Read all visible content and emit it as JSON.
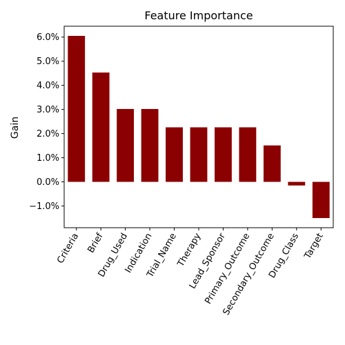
{
  "chart_data": {
    "type": "bar",
    "title": "Feature Importance",
    "xlabel": "",
    "ylabel": "Gain",
    "categories": [
      "Criteria",
      "Brief",
      "Drug_Used",
      "Indication",
      "Trial_Name",
      "Therapy",
      "Lead_Sponsor",
      "Primary_Outcome",
      "Secondary_Outcome",
      "Drug_Class",
      "Target"
    ],
    "values": [
      6.05,
      4.53,
      3.02,
      3.02,
      2.26,
      2.26,
      2.26,
      2.26,
      1.51,
      -0.15,
      -1.5
    ],
    "ylim": [
      -1.9,
      6.45
    ],
    "yticks": [
      -1.0,
      0.0,
      1.0,
      2.0,
      3.0,
      4.0,
      5.0,
      6.0
    ],
    "ytick_labels": [
      "−1.0%",
      "0.0%",
      "1.0%",
      "2.0%",
      "3.0%",
      "4.0%",
      "5.0%",
      "6.0%"
    ],
    "bar_color": "#8b0000",
    "grid": false,
    "legend": "none"
  }
}
